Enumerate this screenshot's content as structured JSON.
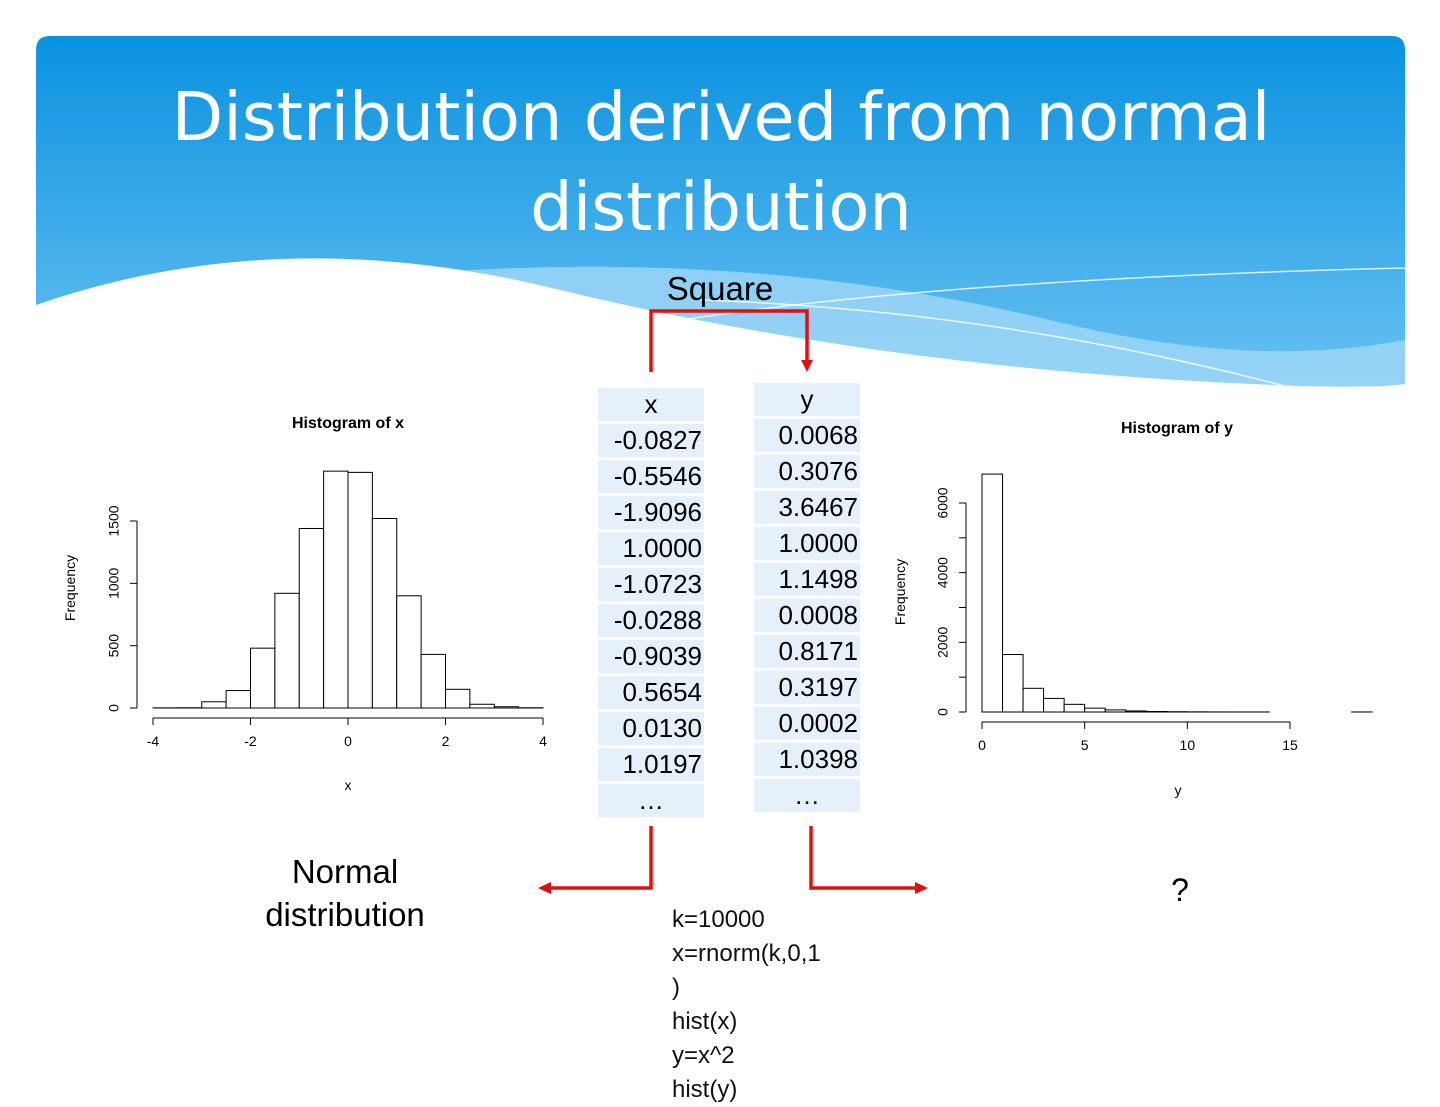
{
  "slide": {
    "title_line1": "Distribution derived from normal",
    "title_line2": "distribution",
    "square_label": "Square",
    "normal_label_line1": "Normal",
    "normal_label_line2": "distribution",
    "question_label": "?",
    "code_lines": [
      "k=10000",
      "x=rnorm(k,0,1",
      ")",
      "hist(x)",
      "y=x^2",
      "hist(y)"
    ],
    "colors": {
      "header_top": "#0a92e0",
      "header_bottom": "#6cc3f2",
      "arrow": "#e01010",
      "table_cell": "#e6f0fb"
    }
  },
  "table_x": {
    "header": "x",
    "values": [
      "-0.0827",
      "-0.5546",
      "-1.9096",
      "1.0000",
      "-1.0723",
      "-0.0288",
      "-0.9039",
      "0.5654",
      "0.0130",
      "1.0197"
    ],
    "ellipsis": "…"
  },
  "table_y": {
    "header": "y",
    "values": [
      "0.0068",
      "0.3076",
      "3.6467",
      "1.0000",
      "1.1498",
      "0.0008",
      "0.8171",
      "0.3197",
      "0.0002",
      "1.0398"
    ],
    "ellipsis": "…"
  },
  "chart_data": [
    {
      "type": "bar",
      "title": "Histogram of x",
      "xlabel": "x",
      "ylabel": "Frequency",
      "bin_width": 0.5,
      "bin_starts": [
        -4,
        -3.5,
        -3,
        -2.5,
        -2,
        -1.5,
        -1,
        -0.5,
        0,
        0.5,
        1,
        1.5,
        2,
        2.5,
        3,
        3.5
      ],
      "values": [
        1,
        2,
        50,
        140,
        480,
        920,
        1440,
        1900,
        1890,
        1520,
        900,
        430,
        150,
        30,
        10,
        2
      ],
      "xlim": [
        -4,
        4
      ],
      "ylim": [
        0,
        1500
      ],
      "xticks": [
        -4,
        -2,
        0,
        2,
        4
      ],
      "yticks": [
        0,
        500,
        1000,
        1500
      ],
      "grid": false
    },
    {
      "type": "bar",
      "title": "Histogram of y",
      "xlabel": "y",
      "ylabel": "Frequency",
      "bin_width": 1,
      "bin_starts": [
        0,
        1,
        2,
        3,
        4,
        5,
        6,
        7,
        8,
        9,
        10,
        11,
        12,
        13,
        14,
        15,
        16,
        17,
        18
      ],
      "values": [
        6830,
        1650,
        680,
        390,
        220,
        110,
        60,
        30,
        15,
        8,
        4,
        2,
        1,
        1,
        0,
        0,
        0,
        0,
        1
      ],
      "xlim": [
        0,
        15
      ],
      "ylim": [
        0,
        6000
      ],
      "xticks": [
        0,
        5,
        10,
        15
      ],
      "yticks": [
        0,
        2000,
        4000,
        6000
      ],
      "grid": false
    }
  ]
}
